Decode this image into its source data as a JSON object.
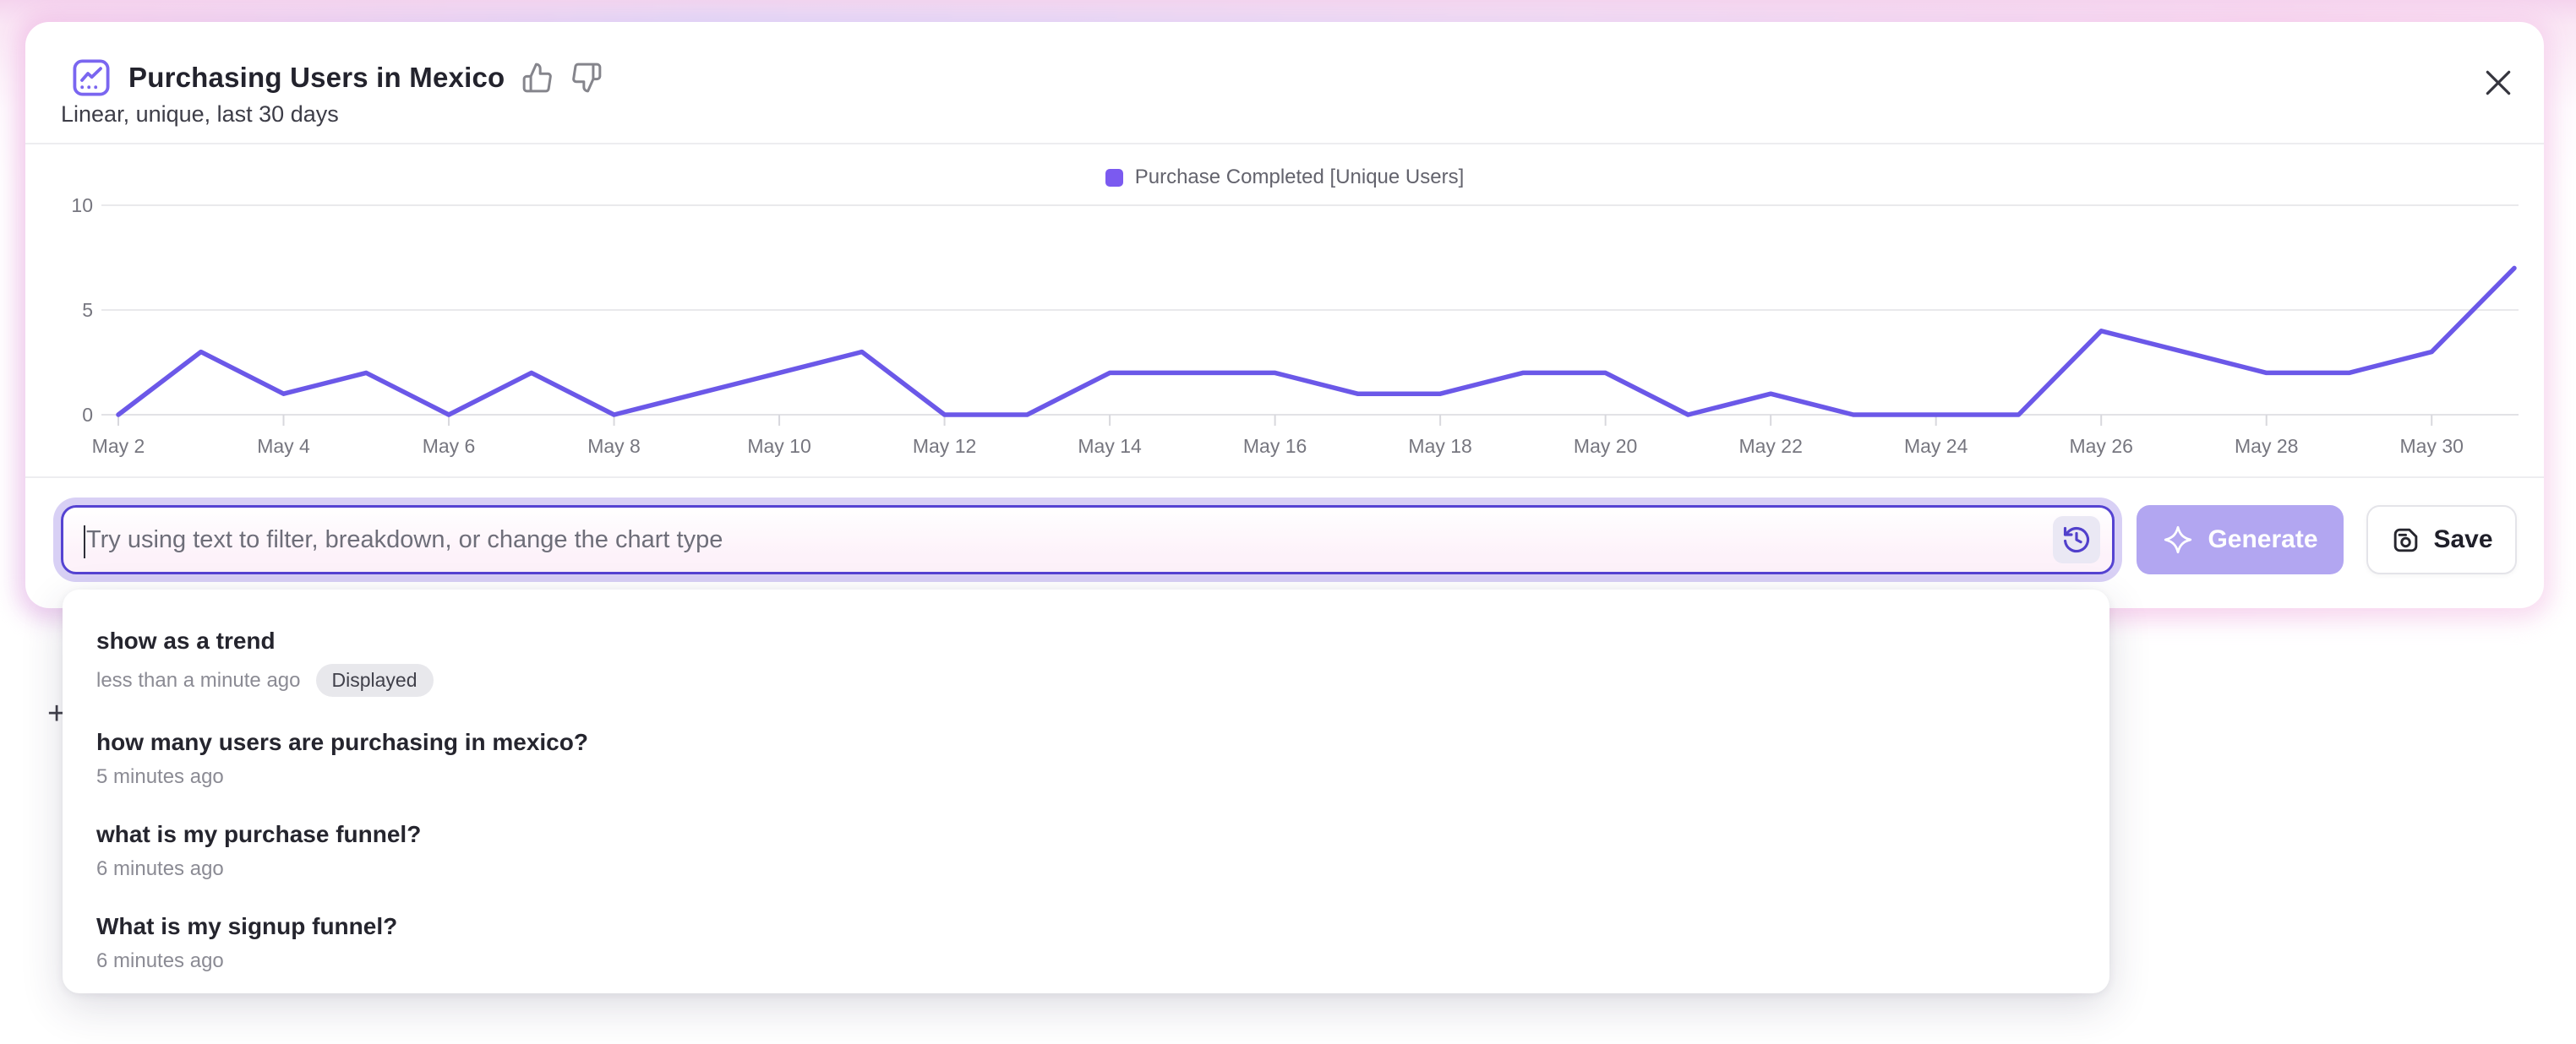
{
  "header": {
    "title": "Purchasing Users in Mexico",
    "subtitle": "Linear, unique, last 30 days"
  },
  "window": {
    "close_glyph": "×"
  },
  "legend": {
    "label": "Purchase Completed [Unique Users]",
    "swatch_color": "#7b5af0"
  },
  "chart_data": {
    "type": "line",
    "title": "Purchasing Users in Mexico",
    "grid": "horizontal",
    "legend_position": "top-center",
    "y_ticks": [
      0,
      5,
      10
    ],
    "ylim": [
      0,
      10
    ],
    "x_tick_labels": [
      "May 2",
      "May 4",
      "May 6",
      "May 8",
      "May 10",
      "May 12",
      "May 14",
      "May 16",
      "May 18",
      "May 20",
      "May 22",
      "May 24",
      "May 26",
      "May 28",
      "May 30"
    ],
    "series": [
      {
        "name": "Purchase Completed [Unique Users]",
        "color": "#6b58e8",
        "x": [
          "May 2",
          "May 3",
          "May 4",
          "May 5",
          "May 6",
          "May 7",
          "May 8",
          "May 9",
          "May 10",
          "May 11",
          "May 12",
          "May 13",
          "May 14",
          "May 15",
          "May 16",
          "May 17",
          "May 18",
          "May 19",
          "May 20",
          "May 21",
          "May 22",
          "May 23",
          "May 24",
          "May 25",
          "May 26",
          "May 27",
          "May 28",
          "May 29",
          "May 30",
          "May 31"
        ],
        "values": [
          0,
          3,
          1,
          2,
          0,
          2,
          0,
          1,
          2,
          3,
          0,
          0,
          2,
          2,
          2,
          1,
          1,
          2,
          2,
          0,
          1,
          0,
          0,
          0,
          4,
          3,
          2,
          2,
          3,
          7
        ]
      }
    ]
  },
  "composer": {
    "placeholder": "Try using text to filter, breakdown, or change the chart type",
    "generate": {
      "label": "Generate",
      "bg_color": "#b2a6f1",
      "disabled": true
    },
    "save": {
      "label": "Save"
    }
  },
  "history_dropdown": {
    "items": [
      {
        "title": "show as a trend",
        "time": "less than a minute ago",
        "badge": "Displayed"
      },
      {
        "title": "how many users are purchasing in mexico?",
        "time": "5 minutes ago",
        "badge": null
      },
      {
        "title": "what is my purchase funnel?",
        "time": "6 minutes ago",
        "badge": null
      },
      {
        "title": "What is my signup funnel?",
        "time": "6 minutes ago",
        "badge": null
      }
    ]
  },
  "background": {
    "partial_plus_glyph": "+"
  }
}
